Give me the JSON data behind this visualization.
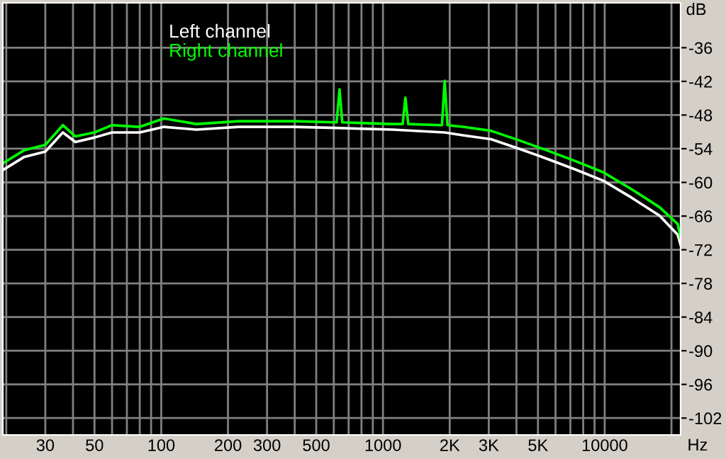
{
  "chart_data": {
    "type": "line",
    "xlabel": "Hz",
    "ylabel": "dB",
    "log": "x",
    "grid": true,
    "legend": "top left",
    "xlim": [
      19.3,
      22000
    ],
    "ylim": [
      -105,
      -28
    ],
    "xticks": [
      {
        "value": 20,
        "label": null
      },
      30,
      {
        "value": 40,
        "label": null
      },
      50,
      {
        "value": 60,
        "label": null
      },
      {
        "value": 70,
        "label": null
      },
      {
        "value": 80,
        "label": null
      },
      {
        "value": 90,
        "label": null
      },
      100,
      200,
      300,
      {
        "value": 400,
        "label": null
      },
      500,
      {
        "value": 600,
        "label": null
      },
      {
        "value": 700,
        "label": null
      },
      {
        "value": 800,
        "label": null
      },
      {
        "value": 900,
        "label": null
      },
      1000,
      {
        "value": 2000,
        "label": "2K"
      },
      {
        "value": 3000,
        "label": "3K"
      },
      {
        "value": 4000,
        "label": null
      },
      {
        "value": 5000,
        "label": "5K"
      },
      {
        "value": 6000,
        "label": null
      },
      {
        "value": 7000,
        "label": null
      },
      {
        "value": 8000,
        "label": null
      },
      {
        "value": 9000,
        "label": null
      },
      10000,
      {
        "value": 20000,
        "label": null
      }
    ],
    "yticks": [
      -36,
      -42,
      -48,
      -54,
      -60,
      -66,
      -72,
      -78,
      -84,
      -90,
      -96,
      -102
    ],
    "series": [
      {
        "name": "Left channel",
        "color": "#ffffff",
        "x": [
          19.5,
          24,
          30,
          36,
          41,
          50,
          60,
          80,
          103,
          144,
          223,
          399,
          618,
          1107,
          1898,
          2294,
          3070,
          4110,
          5500,
          7370,
          9860,
          13200,
          17650,
          21330,
          21980
        ],
        "values": [
          -57.7,
          -55.5,
          -54.5,
          -51.1,
          -52.8,
          -52.0,
          -51.1,
          -51.1,
          -50.1,
          -50.6,
          -50.1,
          -50.1,
          -50.3,
          -50.6,
          -51.1,
          -51.6,
          -52.3,
          -54.0,
          -55.8,
          -57.7,
          -59.7,
          -62.7,
          -65.9,
          -69.3,
          -71.1
        ]
      },
      {
        "name": "Right channel",
        "color": "#00ff00",
        "x": [
          19.5,
          24,
          30,
          36,
          41,
          50,
          60,
          80,
          103,
          144,
          223,
          399,
          618,
          637,
          655,
          1107,
          1227,
          1262,
          1300,
          1845,
          1898,
          1954,
          2294,
          3070,
          4110,
          5500,
          7370,
          9860,
          13200,
          17650,
          21330,
          21980
        ],
        "values": [
          -56.5,
          -54.3,
          -53.3,
          -49.8,
          -51.8,
          -51.1,
          -49.8,
          -50.1,
          -48.6,
          -49.6,
          -49.1,
          -49.1,
          -49.3,
          -43.4,
          -49.3,
          -49.6,
          -49.6,
          -44.9,
          -49.6,
          -49.8,
          -41.9,
          -49.8,
          -50.1,
          -50.8,
          -52.5,
          -54.3,
          -56.2,
          -58.2,
          -61.2,
          -64.4,
          -67.4,
          -69.8
        ]
      }
    ]
  }
}
